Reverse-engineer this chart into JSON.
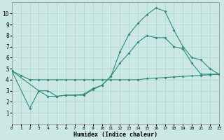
{
  "xlabel": "Humidex (Indice chaleur)",
  "bg_color": "#cce8e4",
  "line_color": "#2e8b7a",
  "xlim": [
    0,
    23
  ],
  "ylim": [
    0,
    11
  ],
  "xticks": [
    0,
    1,
    2,
    3,
    4,
    5,
    6,
    7,
    8,
    9,
    10,
    11,
    12,
    13,
    14,
    15,
    16,
    17,
    18,
    19,
    20,
    21,
    22,
    23
  ],
  "yticks": [
    1,
    2,
    3,
    4,
    5,
    6,
    7,
    8,
    9,
    10
  ],
  "line1_x": [
    0,
    1,
    2,
    3,
    4,
    5,
    6,
    7,
    8,
    9,
    10,
    11,
    12,
    13,
    14,
    15,
    16,
    17,
    18,
    19,
    20,
    21,
    22,
    23
  ],
  "line1_y": [
    4.8,
    4.4,
    4.0,
    4.0,
    4.0,
    4.0,
    4.0,
    4.0,
    4.0,
    4.0,
    4.0,
    4.0,
    4.0,
    4.0,
    4.0,
    4.1,
    4.15,
    4.2,
    4.25,
    4.3,
    4.35,
    4.4,
    4.45,
    4.5
  ],
  "line2_x": [
    0,
    2,
    3,
    4,
    5,
    6,
    7,
    8,
    9,
    10,
    11,
    12,
    13,
    14,
    15,
    16,
    17,
    18,
    19,
    20,
    21,
    22,
    23
  ],
  "line2_y": [
    4.8,
    1.4,
    3.0,
    2.5,
    2.5,
    2.6,
    2.6,
    2.6,
    3.1,
    3.5,
    4.3,
    6.5,
    8.1,
    9.1,
    9.9,
    10.5,
    10.2,
    8.5,
    7.0,
    6.0,
    5.8,
    5.0,
    4.5
  ],
  "line3_x": [
    0,
    3,
    4,
    5,
    6,
    7,
    8,
    9,
    10,
    11,
    12,
    13,
    14,
    15,
    16,
    17,
    18,
    19,
    20,
    21,
    22,
    23
  ],
  "line3_y": [
    4.8,
    3.0,
    3.0,
    2.5,
    2.6,
    2.6,
    2.7,
    3.2,
    3.5,
    4.3,
    5.5,
    6.4,
    7.4,
    8.0,
    7.8,
    7.8,
    7.0,
    6.8,
    5.5,
    4.5,
    4.5,
    4.5
  ]
}
